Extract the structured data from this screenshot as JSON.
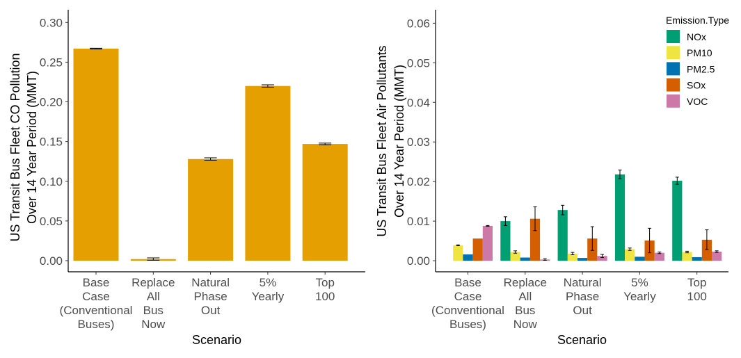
{
  "chart_data": [
    {
      "type": "bar",
      "xlabel": "Scenario",
      "ylabel_lines": [
        "US Transit Bus Fleet CO Pollution",
        "Over 14 Year Period (MMT)"
      ],
      "categories": [
        [
          "Base",
          "Case",
          "(Conventional",
          "Buses)"
        ],
        [
          "Replace",
          "All",
          "Bus",
          "Now"
        ],
        [
          "Natural",
          "Phase",
          "Out"
        ],
        [
          "5%",
          "Yearly"
        ],
        [
          "Top",
          "100"
        ]
      ],
      "ylim": [
        -0.014,
        0.316
      ],
      "yticks": [
        "0.00",
        "0.05",
        "0.10",
        "0.15",
        "0.20",
        "0.25",
        "0.30"
      ],
      "bar_color": "#E69F00",
      "values": [
        0.267,
        0.002,
        0.128,
        0.22,
        0.147
      ],
      "error": [
        0.0005,
        0.0015,
        0.0015,
        0.0015,
        0.001
      ],
      "grid": false
    },
    {
      "type": "bar",
      "xlabel": "Scenario",
      "ylabel_lines": [
        "US Transit Bus Fleet Air Pollutants",
        "Over 14 Year Period (MMT)"
      ],
      "categories": [
        [
          "Base",
          "Case",
          "(Conventional",
          "Buses)"
        ],
        [
          "Replace",
          "All",
          "Bus",
          "Now"
        ],
        [
          "Natural",
          "Phase",
          "Out"
        ],
        [
          "5%",
          "Yearly"
        ],
        [
          "Top",
          "100"
        ]
      ],
      "ylim": [
        -0.0028,
        0.0634
      ],
      "yticks": [
        "0.00",
        "0.01",
        "0.02",
        "0.03",
        "0.04",
        "0.05",
        "0.06"
      ],
      "legend_title": "Emission.Type",
      "legend_position": "top-right",
      "grid": false,
      "series": [
        {
          "name": "NOx",
          "color": "#009E73",
          "values": [
            0.0,
            0.01,
            0.0128,
            0.0218,
            0.0202
          ],
          "error": [
            0.0,
            0.0011,
            0.0012,
            0.0011,
            0.0009
          ]
        },
        {
          "name": "PM10",
          "color": "#F0E442",
          "values": [
            0.0039,
            0.0022,
            0.0018,
            0.0029,
            0.0022
          ],
          "error": [
            0.0001,
            0.0003,
            0.0003,
            0.0003,
            0.0002
          ]
        },
        {
          "name": "PM2.5",
          "color": "#0072B2",
          "values": [
            0.0016,
            0.0008,
            0.0007,
            0.001,
            0.0009
          ],
          "error": [
            0.0,
            0.0,
            0.0,
            0.0,
            0.0
          ]
        },
        {
          "name": "SOx",
          "color": "#D55E00",
          "values": [
            0.0056,
            0.0106,
            0.0056,
            0.0051,
            0.0053
          ],
          "error": [
            0.0,
            0.003,
            0.003,
            0.0031,
            0.0025
          ]
        },
        {
          "name": "VOC",
          "color": "#CC79A7",
          "values": [
            0.0088,
            0.0003,
            0.0012,
            0.002,
            0.0023
          ],
          "error": [
            0.0001,
            0.0002,
            0.0004,
            0.0002,
            0.0002
          ]
        }
      ]
    }
  ]
}
